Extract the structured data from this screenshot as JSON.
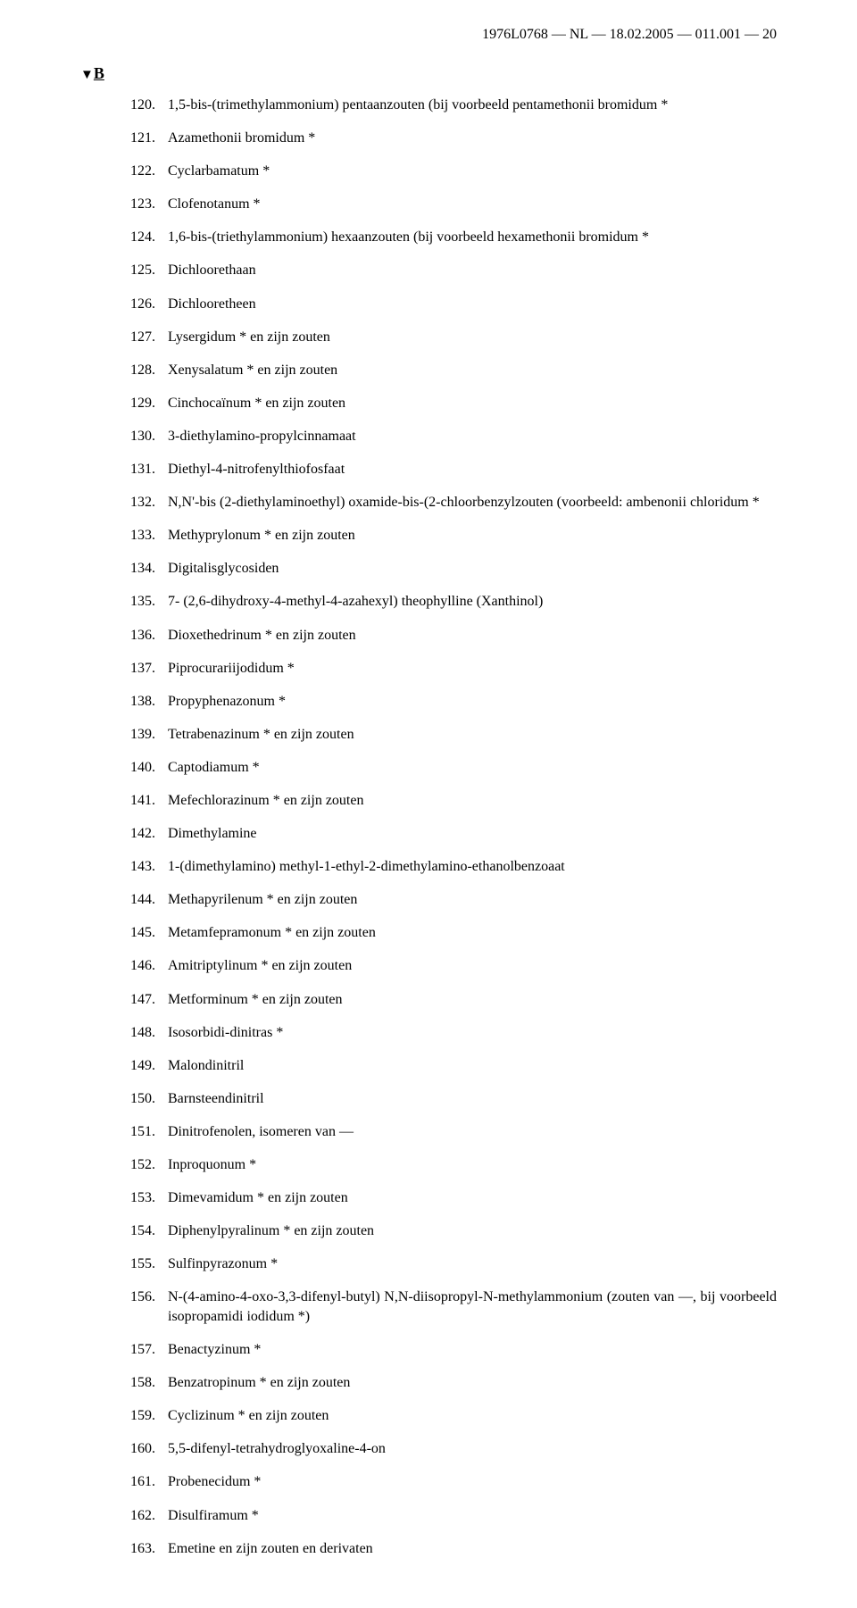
{
  "header": "1976L0768 — NL — 18.02.2005 — 011.001 — 20",
  "marker": {
    "triangle": "▼",
    "letter": "B"
  },
  "items": [
    {
      "n": "120.",
      "t": "1,5-bis-(trimethylammonium) pentaanzouten (bij voorbeeld pentamethonii bromidum *"
    },
    {
      "n": "121.",
      "t": "Azamethonii bromidum *"
    },
    {
      "n": "122.",
      "t": "Cyclarbamatum *"
    },
    {
      "n": "123.",
      "t": "Clofenotanum *"
    },
    {
      "n": "124.",
      "t": "1,6-bis-(triethylammonium) hexaanzouten (bij voorbeeld hexamethonii bromidum *"
    },
    {
      "n": "125.",
      "t": "Dichloorethaan"
    },
    {
      "n": "126.",
      "t": "Dichlooretheen"
    },
    {
      "n": "127.",
      "t": "Lysergidum * en zijn zouten"
    },
    {
      "n": "128.",
      "t": "Xenysalatum * en zijn zouten"
    },
    {
      "n": "129.",
      "t": "Cinchocaïnum * en zijn zouten"
    },
    {
      "n": "130.",
      "t": "3-diethylamino-propylcinnamaat"
    },
    {
      "n": "131.",
      "t": "Diethyl-4-nitrofenylthiofosfaat"
    },
    {
      "n": "132.",
      "t": "N,N'-bis (2-diethylaminoethyl) oxamide-bis-(2-chloorbenzylzouten (voorbeeld: ambenonii chloridum *"
    },
    {
      "n": "133.",
      "t": "Methyprylonum * en zijn zouten"
    },
    {
      "n": "134.",
      "t": "Digitalisglycosiden"
    },
    {
      "n": "135.",
      "t": "7- (2,6-dihydroxy-4-methyl-4-azahexyl) theophylline (Xanthinol)"
    },
    {
      "n": "136.",
      "t": "Dioxethedrinum * en zijn zouten"
    },
    {
      "n": "137.",
      "t": "Piprocurariijodidum *"
    },
    {
      "n": "138.",
      "t": "Propyphenazonum *"
    },
    {
      "n": "139.",
      "t": "Tetrabenazinum * en zijn zouten"
    },
    {
      "n": "140.",
      "t": "Captodiamum *"
    },
    {
      "n": "141.",
      "t": "Mefechlorazinum * en zijn zouten"
    },
    {
      "n": "142.",
      "t": "Dimethylamine"
    },
    {
      "n": "143.",
      "t": "1-(dimethylamino) methyl-1-ethyl-2-dimethylamino-ethanolbenzoaat"
    },
    {
      "n": "144.",
      "t": "Methapyrilenum * en zijn zouten"
    },
    {
      "n": "145.",
      "t": "Metamfepramonum * en zijn zouten"
    },
    {
      "n": "146.",
      "t": "Amitriptylinum * en zijn zouten"
    },
    {
      "n": "147.",
      "t": "Metforminum * en zijn zouten"
    },
    {
      "n": "148.",
      "t": "Isosorbidi-dinitras *"
    },
    {
      "n": "149.",
      "t": "Malondinitril"
    },
    {
      "n": "150.",
      "t": "Barnsteendinitril"
    },
    {
      "n": "151.",
      "t": "Dinitrofenolen, isomeren van —"
    },
    {
      "n": "152.",
      "t": "Inproquonum *"
    },
    {
      "n": "153.",
      "t": "Dimevamidum * en zijn zouten"
    },
    {
      "n": "154.",
      "t": "Diphenylpyralinum * en zijn zouten"
    },
    {
      "n": "155.",
      "t": "Sulfinpyrazonum *"
    },
    {
      "n": "156.",
      "t": "N-(4-amino-4-oxo-3,3-difenyl-butyl) N,N-diisopropyl-N-methylammonium (zouten van —, bij voorbeeld isopropamidi iodidum *)"
    },
    {
      "n": "157.",
      "t": "Benactyzinum *"
    },
    {
      "n": "158.",
      "t": "Benzatropinum * en zijn zouten"
    },
    {
      "n": "159.",
      "t": "Cyclizinum * en zijn zouten"
    },
    {
      "n": "160.",
      "t": "5,5-difenyl-tetrahydroglyoxaline-4-on"
    },
    {
      "n": "161.",
      "t": "Probenecidum *"
    },
    {
      "n": "162.",
      "t": "Disulfiramum *"
    },
    {
      "n": "163.",
      "t": "Emetine en zijn zouten en derivaten"
    }
  ]
}
